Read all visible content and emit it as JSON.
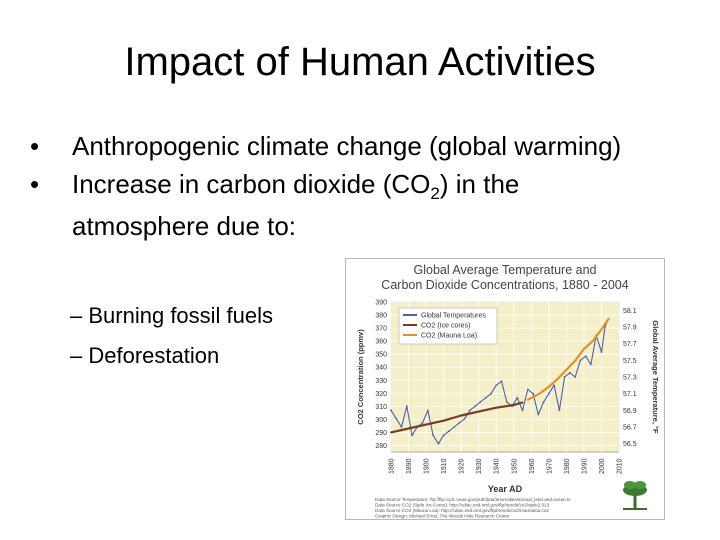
{
  "slide": {
    "title": "Impact of Human Activities",
    "bullets": [
      {
        "text": "Anthropogenic climate change (global warming)"
      },
      {
        "text_before": "Increase in carbon dioxide (CO",
        "subscript": "2",
        "text_after": ") in the atmosphere due to:"
      }
    ],
    "sub_bullets": [
      "Burning fossil fuels",
      "Deforestation"
    ],
    "bullet_char": "•",
    "sub_bullet_char": "–"
  },
  "figure": {
    "title_line1": "Global Average Temperature and",
    "title_line2": "Carbon Dioxide Concentrations, 1880 - 2004",
    "xlabel": "Year AD",
    "ylabel_left": "CO2 Concentration (ppmv)",
    "ylabel_right": "Global Average Temperature, °F",
    "left_ticks": [
      "390",
      "380",
      "370",
      "360",
      "350",
      "340",
      "330",
      "320",
      "310",
      "300",
      "290",
      "280"
    ],
    "right_ticks": [
      "58.1",
      "57.9",
      "57.7",
      "57.5",
      "57.3",
      "57.1",
      "56.9",
      "56.7",
      "56.5"
    ],
    "x_ticks": [
      "1880",
      "1890",
      "1900",
      "1910",
      "1920",
      "1930",
      "1940",
      "1950",
      "1960",
      "1970",
      "1980",
      "1990",
      "2000",
      "2010"
    ],
    "legend": [
      {
        "label": "Global Temperatures",
        "color": "#4f5fa8"
      },
      {
        "label": "CO2 (Ice cores)",
        "color": "#7a3a24"
      },
      {
        "label": "CO2 (Mauna Loa)",
        "color": "#e0902a"
      }
    ],
    "credits": [
      "Data Source Temperature: ftp://ftp.ncdc.noaa.gov/pub/data/anomalies/annual_land.and.ocean.ts",
      "Data Source CO2 (Siple Ice Cores): http://cdiac.esd.ornl.gov/ftp/trends/co2/siple2.013",
      "Data Source CO2 (Mauna Loa): http://cdiac.esd.ornl.gov/ftp/trends/co2/maunaloa.co2",
      "Graphic Design: Michael Ernst, The Woods Hole Research Center"
    ],
    "colors": {
      "frame": "#b9b9b9",
      "plot_bg": "#f3efc9",
      "axis_text": "#333333"
    }
  },
  "chart_data": {
    "type": "line",
    "title": "Global Average Temperature and Carbon Dioxide Concentrations, 1880 - 2004",
    "xlabel": "Year AD",
    "ylabel": "CO2 Concentration (ppmv)",
    "y2label": "Global Average Temperature, °F",
    "xlim": [
      1880,
      2010
    ],
    "ylim": [
      275,
      390
    ],
    "y2lim": [
      56.4,
      58.2
    ],
    "series": [
      {
        "name": "Global Temperatures",
        "axis": "right",
        "color": "#4f5fa8",
        "x": [
          1880,
          1883,
          1886,
          1889,
          1892,
          1895,
          1898,
          1901,
          1904,
          1907,
          1910,
          1913,
          1916,
          1919,
          1922,
          1925,
          1928,
          1931,
          1934,
          1937,
          1940,
          1943,
          1946,
          1949,
          1952,
          1955,
          1958,
          1961,
          1964,
          1967,
          1970,
          1973,
          1976,
          1979,
          1982,
          1985,
          1988,
          1991,
          1994,
          1997,
          2000,
          2002,
          2004
        ],
        "y": [
          56.9,
          56.8,
          56.7,
          56.95,
          56.6,
          56.7,
          56.75,
          56.9,
          56.6,
          56.5,
          56.6,
          56.65,
          56.7,
          56.75,
          56.8,
          56.9,
          56.95,
          57.0,
          57.05,
          57.1,
          57.2,
          57.25,
          57.0,
          56.95,
          57.05,
          56.9,
          57.15,
          57.1,
          56.85,
          57.0,
          57.1,
          57.2,
          56.9,
          57.3,
          57.35,
          57.3,
          57.5,
          57.55,
          57.45,
          57.8,
          57.6,
          57.9,
          58.0
        ]
      },
      {
        "name": "CO2 (Ice cores)",
        "axis": "left",
        "color": "#7a3a24",
        "x": [
          1880,
          1890,
          1900,
          1910,
          1920,
          1930,
          1940,
          1950,
          1955
        ],
        "y": [
          290,
          293,
          296,
          299,
          303,
          306,
          309,
          311,
          313
        ]
      },
      {
        "name": "CO2 (Mauna Loa)",
        "axis": "left",
        "color": "#e0902a",
        "x": [
          1958,
          1965,
          1970,
          1975,
          1980,
          1985,
          1990,
          1995,
          2000,
          2004
        ],
        "y": [
          315,
          320,
          325,
          331,
          338,
          345,
          354,
          360,
          369,
          377
        ]
      }
    ]
  }
}
